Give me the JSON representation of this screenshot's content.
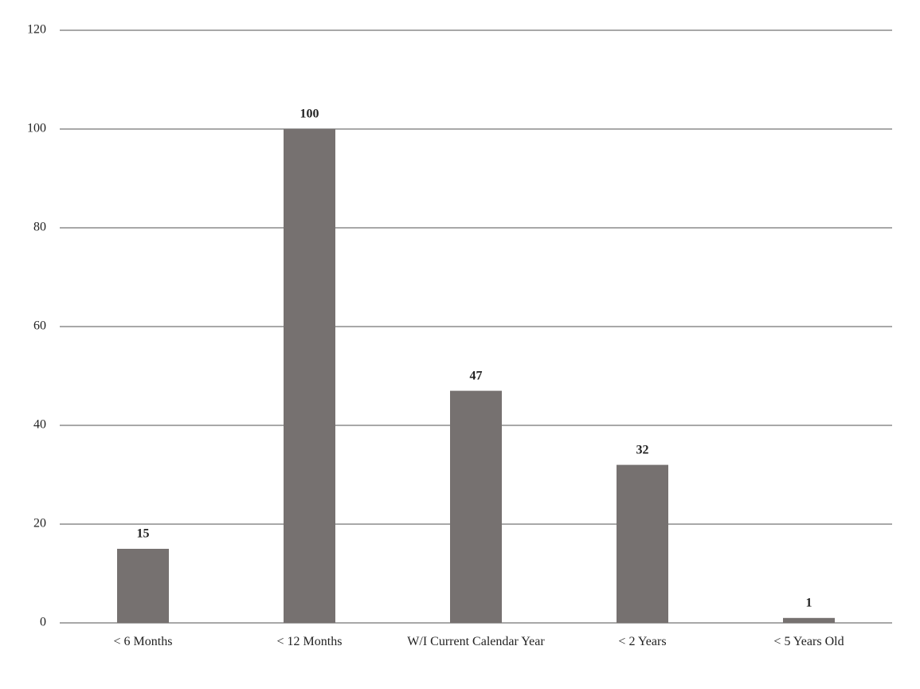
{
  "chart_data": {
    "type": "bar",
    "categories": [
      "< 6 Months",
      "< 12 Months",
      "W/I Current Calendar Year",
      "< 2 Years",
      "< 5 Years Old"
    ],
    "values": [
      15,
      100,
      47,
      32,
      1
    ],
    "color": "#767170",
    "ylim": [
      0,
      120
    ],
    "yticks": [
      0,
      20,
      40,
      60,
      80,
      100,
      120
    ],
    "grid": true
  }
}
